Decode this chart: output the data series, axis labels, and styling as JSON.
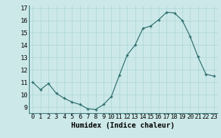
{
  "x": [
    0,
    1,
    2,
    3,
    4,
    5,
    6,
    7,
    8,
    9,
    10,
    11,
    12,
    13,
    14,
    15,
    16,
    17,
    18,
    19,
    20,
    21,
    22,
    23
  ],
  "y": [
    11.0,
    10.4,
    10.9,
    10.1,
    9.7,
    9.4,
    9.2,
    8.85,
    8.8,
    9.2,
    9.85,
    11.55,
    13.2,
    14.0,
    15.35,
    15.55,
    16.05,
    16.65,
    16.6,
    16.0,
    14.7,
    13.05,
    11.65,
    11.5
  ],
  "xlabel": "Humidex (Indice chaleur)",
  "ylim": [
    8.5,
    17.2
  ],
  "xlim": [
    -0.5,
    23.5
  ],
  "yticks": [
    9,
    10,
    11,
    12,
    13,
    14,
    15,
    16,
    17
  ],
  "xticks": [
    0,
    1,
    2,
    3,
    4,
    5,
    6,
    7,
    8,
    9,
    10,
    11,
    12,
    13,
    14,
    15,
    16,
    17,
    18,
    19,
    20,
    21,
    22,
    23
  ],
  "line_color": "#2e6e6e",
  "marker": "+",
  "bg_color": "#cce8e8",
  "grid_color": "#aad4d4",
  "xlabel_fontsize": 7.5,
  "tick_fontsize": 6.5
}
